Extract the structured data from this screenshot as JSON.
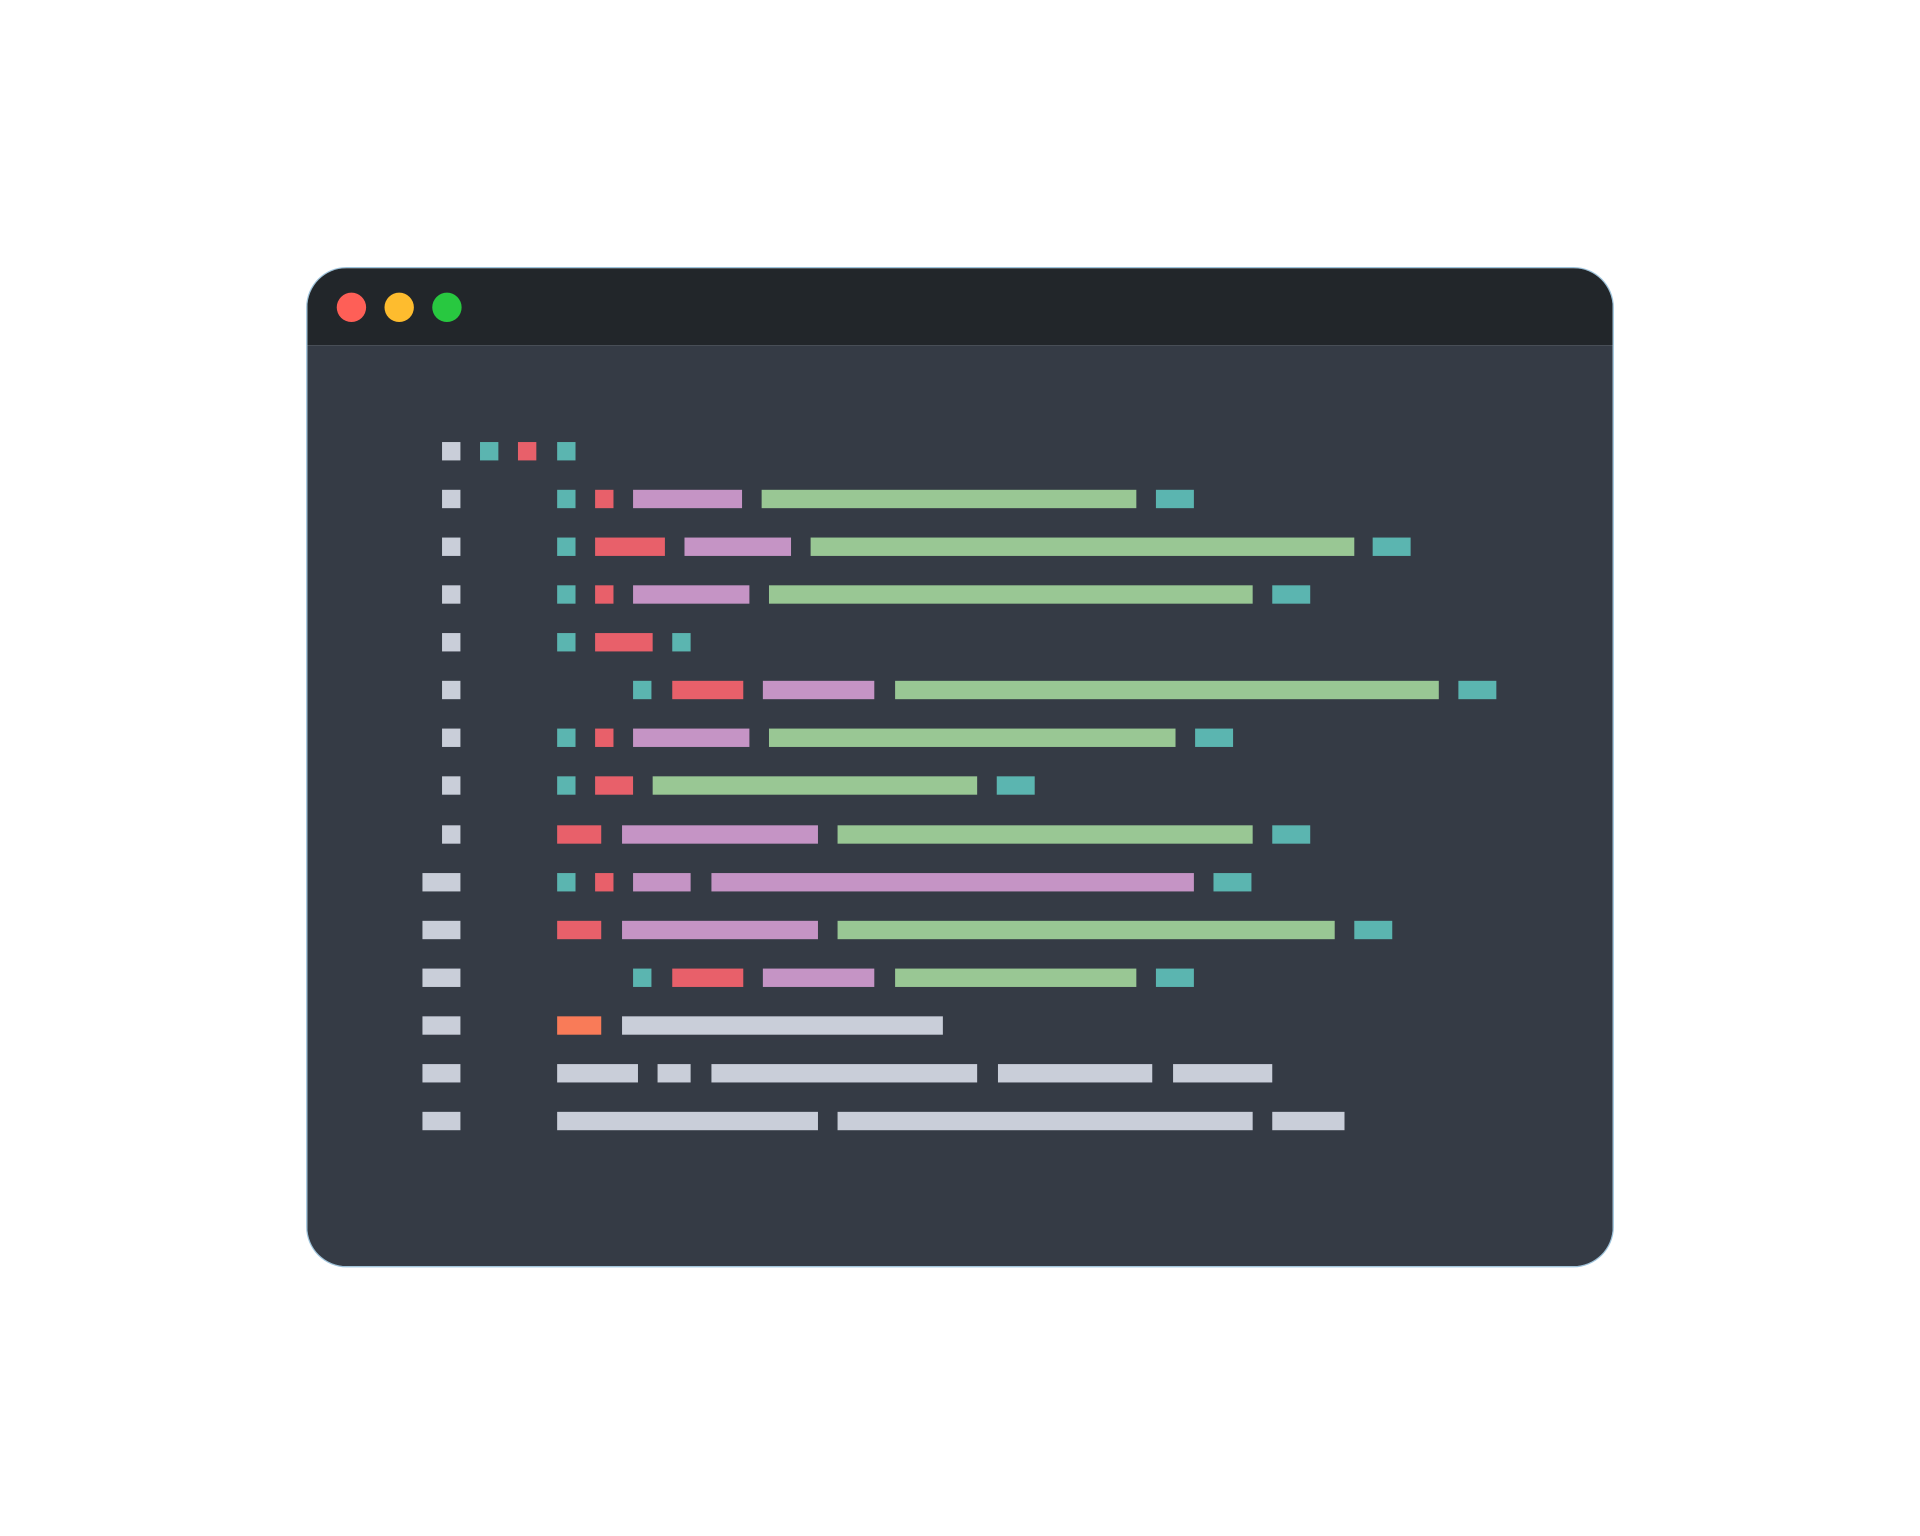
{
  "window": {
    "titlebar_color": "#22262a",
    "editor_background": "#353b45",
    "controls": [
      {
        "name": "close",
        "color": "#fe5f57"
      },
      {
        "name": "minimize",
        "color": "#febc2e"
      },
      {
        "name": "maximize",
        "color": "#28c840"
      }
    ]
  },
  "syntax_colors": {
    "gutter": "#c9ced9",
    "plain": "#c9ced9",
    "punctuation": "#5bb5b0",
    "keyword": "#e8606a",
    "function": "#c594c5",
    "string": "#99c794",
    "number": "#f97b58"
  }
}
